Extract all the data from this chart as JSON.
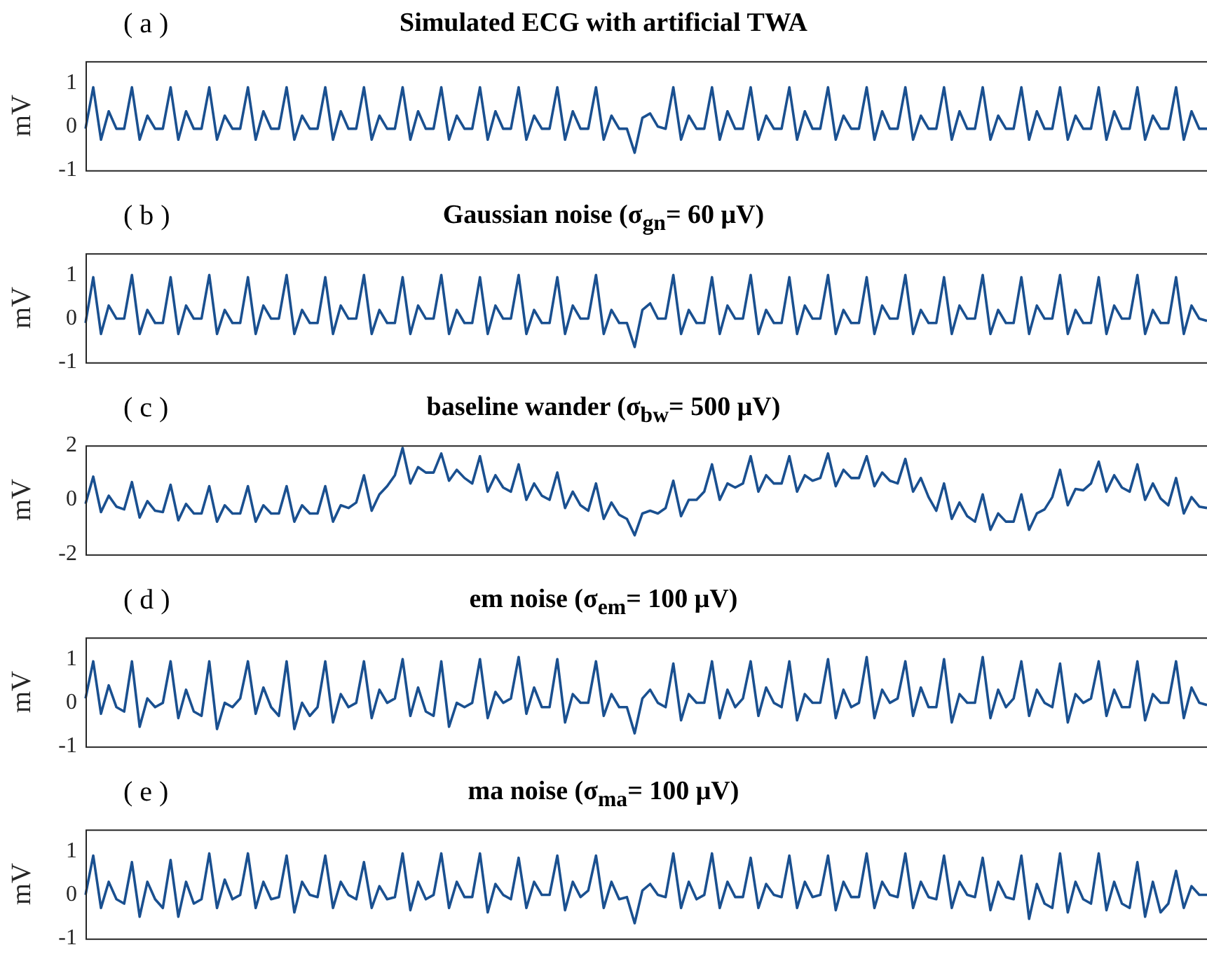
{
  "chart_data": [
    {
      "type": "line",
      "title": "Simulated ECG with artificial TWA",
      "annotations": [
        "( a )"
      ],
      "ylabel": "mV",
      "color": "#1a5090",
      "ylim": [
        -1,
        1.5
      ],
      "yticks": [
        -1,
        0,
        1
      ],
      "categories": [
        null,
        null,
        null,
        null,
        null,
        null,
        null,
        null,
        null,
        null,
        null,
        null,
        null,
        null,
        null,
        null,
        null,
        null,
        null,
        null,
        null,
        null,
        null,
        null,
        null,
        null,
        null,
        null,
        null,
        null,
        null,
        null,
        null,
        null,
        null,
        null,
        null,
        null,
        null,
        null,
        null,
        null,
        null,
        null,
        null,
        null,
        null,
        null,
        null,
        null,
        null,
        null,
        null,
        null,
        null,
        null,
        null,
        null,
        null,
        null,
        null,
        null,
        null,
        null,
        null,
        null,
        null,
        null,
        null,
        null,
        null,
        null,
        null,
        null,
        null,
        null,
        null,
        null,
        null,
        null,
        null,
        null,
        null,
        null,
        null,
        null,
        null,
        null,
        null,
        null,
        null,
        null,
        null,
        null,
        null,
        null,
        null,
        null,
        null,
        null,
        null,
        null,
        null,
        null,
        null,
        null,
        null,
        null,
        null,
        null,
        null,
        null,
        null,
        null,
        null,
        null,
        null,
        null,
        null,
        null,
        null,
        null,
        null,
        null,
        null,
        null,
        null,
        null,
        null,
        null,
        null,
        null,
        null,
        null,
        null,
        null,
        null,
        null,
        null,
        null,
        null,
        null,
        null,
        null,
        null,
        null
      ],
      "values": [
        -0.05,
        0.9,
        -0.3,
        0.35,
        -0.05,
        -0.05,
        0.9,
        -0.3,
        0.25,
        -0.05,
        -0.05,
        0.9,
        -0.3,
        0.35,
        -0.05,
        -0.05,
        0.9,
        -0.3,
        0.25,
        -0.05,
        -0.05,
        0.9,
        -0.3,
        0.35,
        -0.05,
        -0.05,
        0.9,
        -0.3,
        0.25,
        -0.05,
        -0.05,
        0.9,
        -0.3,
        0.35,
        -0.05,
        -0.05,
        0.9,
        -0.3,
        0.25,
        -0.05,
        -0.05,
        0.9,
        -0.3,
        0.35,
        -0.05,
        -0.05,
        0.9,
        -0.3,
        0.25,
        -0.05,
        -0.05,
        0.9,
        -0.3,
        0.35,
        -0.05,
        -0.05,
        0.9,
        -0.3,
        0.25,
        -0.05,
        -0.05,
        0.9,
        -0.3,
        0.35,
        -0.05,
        -0.05,
        0.9,
        -0.3,
        0.25,
        -0.05,
        -0.05,
        -0.6,
        0.2,
        0.3,
        0.0,
        -0.05,
        0.9,
        -0.3,
        0.25,
        -0.05,
        -0.05,
        0.9,
        -0.3,
        0.35,
        -0.05,
        -0.05,
        0.9,
        -0.3,
        0.25,
        -0.05,
        -0.05,
        0.9,
        -0.3,
        0.35,
        -0.05,
        -0.05,
        0.9,
        -0.3,
        0.25,
        -0.05,
        -0.05,
        0.9,
        -0.3,
        0.35,
        -0.05,
        -0.05,
        0.9,
        -0.3,
        0.25,
        -0.05,
        -0.05,
        0.9,
        -0.3,
        0.35,
        -0.05,
        -0.05,
        0.9,
        -0.3,
        0.25,
        -0.05,
        -0.05,
        0.9,
        -0.3,
        0.35,
        -0.05,
        -0.05,
        0.9,
        -0.3,
        0.25,
        -0.05,
        -0.05,
        0.9,
        -0.3,
        0.35,
        -0.05,
        -0.05,
        0.9,
        -0.3,
        0.25,
        -0.05,
        -0.05,
        0.9,
        -0.3,
        0.35,
        -0.05,
        -0.05
      ]
    },
    {
      "type": "line",
      "title": "Gaussian noise (σ$_{gn}$= 60 μV)",
      "annotations": [
        "( b )"
      ],
      "ylabel": "mV",
      "color": "#1a5090",
      "ylim": [
        -1,
        1.5
      ],
      "yticks": [
        -1,
        0,
        1
      ],
      "categories": [
        null,
        null,
        null,
        null,
        null,
        null,
        null,
        null,
        null,
        null,
        null,
        null,
        null,
        null,
        null,
        null,
        null,
        null,
        null,
        null,
        null,
        null,
        null,
        null,
        null,
        null,
        null,
        null,
        null,
        null,
        null,
        null,
        null,
        null,
        null,
        null,
        null,
        null,
        null,
        null,
        null,
        null,
        null,
        null,
        null,
        null,
        null,
        null,
        null,
        null,
        null,
        null,
        null,
        null,
        null,
        null,
        null,
        null,
        null,
        null,
        null,
        null,
        null,
        null,
        null,
        null,
        null,
        null,
        null,
        null,
        null,
        null,
        null,
        null,
        null,
        null,
        null,
        null,
        null,
        null,
        null,
        null,
        null,
        null,
        null,
        null,
        null,
        null,
        null,
        null,
        null,
        null,
        null,
        null,
        null,
        null,
        null,
        null,
        null,
        null,
        null,
        null,
        null,
        null,
        null,
        null,
        null,
        null,
        null,
        null,
        null,
        null,
        null,
        null,
        null,
        null,
        null,
        null,
        null,
        null,
        null,
        null,
        null,
        null,
        null,
        null,
        null,
        null,
        null,
        null,
        null,
        null,
        null,
        null,
        null,
        null,
        null,
        null,
        null,
        null,
        null,
        null,
        null,
        null,
        null,
        null
      ],
      "values": [
        -0.1,
        0.95,
        -0.35,
        0.3,
        0.0,
        0.0,
        1.0,
        -0.35,
        0.2,
        -0.1,
        -0.1,
        0.95,
        -0.35,
        0.3,
        0.0,
        0.0,
        1.0,
        -0.35,
        0.2,
        -0.1,
        -0.1,
        0.95,
        -0.35,
        0.3,
        0.0,
        0.0,
        1.0,
        -0.35,
        0.2,
        -0.1,
        -0.1,
        0.95,
        -0.35,
        0.3,
        0.0,
        0.0,
        1.0,
        -0.35,
        0.2,
        -0.1,
        -0.1,
        0.95,
        -0.35,
        0.3,
        0.0,
        0.0,
        1.0,
        -0.35,
        0.2,
        -0.1,
        -0.1,
        0.95,
        -0.35,
        0.3,
        0.0,
        0.0,
        1.0,
        -0.35,
        0.2,
        -0.1,
        -0.1,
        0.95,
        -0.35,
        0.3,
        0.0,
        0.0,
        1.0,
        -0.35,
        0.2,
        -0.1,
        -0.1,
        -0.65,
        0.2,
        0.35,
        0.0,
        0.0,
        1.0,
        -0.35,
        0.2,
        -0.1,
        -0.1,
        0.95,
        -0.35,
        0.3,
        0.0,
        0.0,
        1.0,
        -0.35,
        0.2,
        -0.1,
        -0.1,
        0.95,
        -0.35,
        0.3,
        0.0,
        0.0,
        1.0,
        -0.35,
        0.2,
        -0.1,
        -0.1,
        0.95,
        -0.35,
        0.3,
        0.0,
        0.0,
        1.0,
        -0.35,
        0.2,
        -0.1,
        -0.1,
        0.95,
        -0.35,
        0.3,
        0.0,
        0.0,
        1.0,
        -0.35,
        0.2,
        -0.1,
        -0.1,
        0.95,
        -0.35,
        0.3,
        0.0,
        0.0,
        1.0,
        -0.35,
        0.2,
        -0.1,
        -0.1,
        0.95,
        -0.35,
        0.3,
        0.0,
        0.0,
        1.0,
        -0.35,
        0.2,
        -0.1,
        -0.1,
        0.95,
        -0.35,
        0.3,
        0.0,
        -0.05
      ]
    },
    {
      "type": "line",
      "title": "baseline wander (σ$_{bw}$= 500 μV)",
      "annotations": [
        "( c )"
      ],
      "ylabel": "mV",
      "color": "#1a5090",
      "ylim": [
        -2,
        2
      ],
      "yticks": [
        -2,
        0,
        2
      ],
      "categories": [
        null,
        null,
        null,
        null,
        null,
        null,
        null,
        null,
        null,
        null,
        null,
        null,
        null,
        null,
        null,
        null,
        null,
        null,
        null,
        null,
        null,
        null,
        null,
        null,
        null,
        null,
        null,
        null,
        null,
        null,
        null,
        null,
        null,
        null,
        null,
        null,
        null,
        null,
        null,
        null,
        null,
        null,
        null,
        null,
        null,
        null,
        null,
        null,
        null,
        null,
        null,
        null,
        null,
        null,
        null,
        null,
        null,
        null,
        null,
        null,
        null,
        null,
        null,
        null,
        null,
        null,
        null,
        null,
        null,
        null,
        null,
        null,
        null,
        null,
        null,
        null,
        null,
        null,
        null,
        null,
        null,
        null,
        null,
        null,
        null,
        null,
        null,
        null,
        null,
        null,
        null,
        null,
        null,
        null,
        null,
        null,
        null,
        null,
        null,
        null,
        null,
        null,
        null,
        null,
        null,
        null,
        null,
        null,
        null,
        null,
        null,
        null,
        null,
        null,
        null,
        null,
        null,
        null,
        null,
        null,
        null,
        null,
        null,
        null,
        null,
        null,
        null,
        null,
        null,
        null,
        null,
        null,
        null,
        null,
        null,
        null,
        null,
        null,
        null,
        null,
        null,
        null,
        null,
        null,
        null,
        null
      ],
      "values": [
        -0.15,
        0.85,
        -0.45,
        0.15,
        -0.25,
        -0.35,
        0.65,
        -0.65,
        -0.05,
        -0.4,
        -0.45,
        0.55,
        -0.75,
        -0.15,
        -0.5,
        -0.5,
        0.5,
        -0.8,
        -0.2,
        -0.5,
        -0.5,
        0.5,
        -0.8,
        -0.2,
        -0.5,
        -0.5,
        0.5,
        -0.8,
        -0.2,
        -0.5,
        -0.5,
        0.5,
        -0.8,
        -0.2,
        -0.3,
        -0.1,
        0.9,
        -0.4,
        0.2,
        0.5,
        0.9,
        1.9,
        0.6,
        1.2,
        1.0,
        1.0,
        1.7,
        0.7,
        1.1,
        0.8,
        0.6,
        1.6,
        0.3,
        0.9,
        0.45,
        0.3,
        1.3,
        0.0,
        0.6,
        0.15,
        0.0,
        1.0,
        -0.3,
        0.3,
        -0.2,
        -0.4,
        0.6,
        -0.7,
        -0.1,
        -0.55,
        -0.7,
        -1.3,
        -0.5,
        -0.4,
        -0.5,
        -0.3,
        0.7,
        -0.6,
        0.0,
        0.0,
        0.3,
        1.3,
        0.0,
        0.6,
        0.45,
        0.6,
        1.6,
        0.3,
        0.9,
        0.6,
        0.6,
        1.6,
        0.3,
        0.9,
        0.7,
        0.8,
        1.7,
        0.5,
        1.1,
        0.8,
        0.8,
        1.6,
        0.5,
        1.0,
        0.7,
        0.6,
        1.5,
        0.3,
        0.8,
        0.1,
        -0.4,
        0.6,
        -0.7,
        -0.1,
        -0.6,
        -0.8,
        0.2,
        -1.1,
        -0.5,
        -0.8,
        -0.8,
        0.2,
        -1.1,
        -0.5,
        -0.35,
        0.1,
        1.1,
        -0.2,
        0.4,
        0.35,
        0.6,
        1.4,
        0.3,
        0.9,
        0.45,
        0.3,
        1.3,
        0.0,
        0.6,
        0.05,
        -0.2,
        0.8,
        -0.5,
        0.1,
        -0.25,
        -0.3
      ]
    },
    {
      "type": "line",
      "title": "em noise (σ$_{em}$= 100 μV)",
      "annotations": [
        "( d )"
      ],
      "ylabel": "mV",
      "color": "#1a5090",
      "ylim": [
        -1,
        1.5
      ],
      "yticks": [
        -1,
        0,
        1
      ],
      "categories": [
        null,
        null,
        null,
        null,
        null,
        null,
        null,
        null,
        null,
        null,
        null,
        null,
        null,
        null,
        null,
        null,
        null,
        null,
        null,
        null,
        null,
        null,
        null,
        null,
        null,
        null,
        null,
        null,
        null,
        null,
        null,
        null,
        null,
        null,
        null,
        null,
        null,
        null,
        null,
        null,
        null,
        null,
        null,
        null,
        null,
        null,
        null,
        null,
        null,
        null,
        null,
        null,
        null,
        null,
        null,
        null,
        null,
        null,
        null,
        null,
        null,
        null,
        null,
        null,
        null,
        null,
        null,
        null,
        null,
        null,
        null,
        null,
        null,
        null,
        null,
        null,
        null,
        null,
        null,
        null,
        null,
        null,
        null,
        null,
        null,
        null,
        null,
        null,
        null,
        null,
        null,
        null,
        null,
        null,
        null,
        null,
        null,
        null,
        null,
        null,
        null,
        null,
        null,
        null,
        null,
        null,
        null,
        null,
        null,
        null,
        null,
        null,
        null,
        null,
        null,
        null,
        null,
        null,
        null,
        null,
        null,
        null,
        null,
        null,
        null,
        null,
        null,
        null,
        null,
        null,
        null,
        null,
        null,
        null,
        null,
        null,
        null,
        null,
        null,
        null,
        null,
        null,
        null,
        null,
        null,
        null
      ],
      "values": [
        0.1,
        0.95,
        -0.25,
        0.4,
        -0.1,
        -0.2,
        0.95,
        -0.55,
        0.1,
        -0.1,
        0.0,
        0.95,
        -0.35,
        0.3,
        -0.2,
        -0.3,
        0.95,
        -0.6,
        0.0,
        -0.1,
        0.1,
        0.95,
        -0.25,
        0.35,
        -0.1,
        -0.3,
        0.95,
        -0.6,
        0.0,
        -0.3,
        -0.1,
        0.95,
        -0.45,
        0.2,
        -0.1,
        0.0,
        0.95,
        -0.35,
        0.3,
        0.0,
        0.1,
        1.0,
        -0.3,
        0.35,
        -0.2,
        -0.3,
        0.95,
        -0.55,
        0.0,
        -0.1,
        0.0,
        1.0,
        -0.35,
        0.25,
        0.0,
        0.1,
        1.05,
        -0.25,
        0.35,
        -0.1,
        -0.1,
        1.0,
        -0.45,
        0.2,
        0.0,
        0.0,
        0.95,
        -0.3,
        0.2,
        -0.1,
        -0.1,
        -0.7,
        0.1,
        0.3,
        0.0,
        -0.1,
        0.9,
        -0.4,
        0.2,
        0.0,
        0.0,
        0.95,
        -0.35,
        0.3,
        -0.1,
        0.1,
        0.95,
        -0.3,
        0.35,
        0.0,
        -0.1,
        0.95,
        -0.4,
        0.2,
        0.0,
        0.0,
        1.0,
        -0.35,
        0.3,
        -0.1,
        0.0,
        1.05,
        -0.35,
        0.3,
        0.0,
        0.1,
        0.95,
        -0.3,
        0.35,
        -0.1,
        -0.1,
        1.0,
        -0.45,
        0.2,
        0.0,
        0.0,
        1.05,
        -0.35,
        0.3,
        -0.1,
        0.1,
        0.95,
        -0.3,
        0.3,
        0.0,
        -0.1,
        0.9,
        -0.45,
        0.2,
        0.0,
        0.1,
        0.95,
        -0.3,
        0.3,
        -0.1,
        -0.1,
        0.95,
        -0.4,
        0.2,
        0.0,
        0.0,
        0.95,
        -0.35,
        0.35,
        0.0,
        -0.05
      ]
    },
    {
      "type": "line",
      "title": "ma noise (σ$_{ma}$= 100 μV)",
      "annotations": [
        "( e )"
      ],
      "ylabel": "mV",
      "color": "#1a5090",
      "ylim": [
        -1,
        1.5
      ],
      "yticks": [
        -1,
        0,
        1
      ],
      "categories": [
        null,
        null,
        null,
        null,
        null,
        null,
        null,
        null,
        null,
        null,
        null,
        null,
        null,
        null,
        null,
        null,
        null,
        null,
        null,
        null,
        null,
        null,
        null,
        null,
        null,
        null,
        null,
        null,
        null,
        null,
        null,
        null,
        null,
        null,
        null,
        null,
        null,
        null,
        null,
        null,
        null,
        null,
        null,
        null,
        null,
        null,
        null,
        null,
        null,
        null,
        null,
        null,
        null,
        null,
        null,
        null,
        null,
        null,
        null,
        null,
        null,
        null,
        null,
        null,
        null,
        null,
        null,
        null,
        null,
        null,
        null,
        null,
        null,
        null,
        null,
        null,
        null,
        null,
        null,
        null,
        null,
        null,
        null,
        null,
        null,
        null,
        null,
        null,
        null,
        null,
        null,
        null,
        null,
        null,
        null,
        null,
        null,
        null,
        null,
        null,
        null,
        null,
        null,
        null,
        null,
        null,
        null,
        null,
        null,
        null,
        null,
        null,
        null,
        null,
        null,
        null,
        null,
        null,
        null,
        null,
        null,
        null,
        null,
        null,
        null,
        null,
        null,
        null,
        null,
        null,
        null,
        null,
        null,
        null,
        null,
        null,
        null,
        null,
        null,
        null,
        null,
        null,
        null,
        null,
        null,
        null
      ],
      "values": [
        0.0,
        0.9,
        -0.3,
        0.3,
        -0.1,
        -0.2,
        0.75,
        -0.5,
        0.3,
        -0.1,
        -0.3,
        0.8,
        -0.5,
        0.3,
        -0.2,
        -0.1,
        0.95,
        -0.3,
        0.35,
        -0.1,
        0.0,
        0.95,
        -0.3,
        0.3,
        -0.1,
        -0.05,
        0.9,
        -0.4,
        0.3,
        0.0,
        -0.05,
        0.9,
        -0.3,
        0.3,
        0.0,
        -0.1,
        0.75,
        -0.3,
        0.2,
        -0.1,
        -0.05,
        0.95,
        -0.35,
        0.3,
        -0.1,
        0.0,
        0.95,
        -0.3,
        0.3,
        -0.05,
        -0.05,
        0.95,
        -0.4,
        0.25,
        0.0,
        -0.1,
        0.85,
        -0.3,
        0.3,
        0.0,
        0.0,
        0.9,
        -0.35,
        0.3,
        -0.05,
        0.1,
        0.9,
        -0.3,
        0.3,
        -0.1,
        -0.05,
        -0.65,
        0.1,
        0.25,
        0.0,
        -0.05,
        0.95,
        -0.3,
        0.3,
        -0.1,
        0.0,
        0.95,
        -0.3,
        0.3,
        -0.05,
        -0.05,
        0.85,
        -0.3,
        0.25,
        0.0,
        -0.05,
        0.9,
        -0.3,
        0.3,
        -0.05,
        0.0,
        0.9,
        -0.35,
        0.3,
        -0.05,
        -0.05,
        0.95,
        -0.3,
        0.3,
        0.0,
        -0.05,
        0.95,
        -0.3,
        0.3,
        -0.05,
        -0.1,
        0.9,
        -0.3,
        0.3,
        0.0,
        -0.05,
        0.85,
        -0.35,
        0.3,
        -0.05,
        -0.1,
        0.9,
        -0.55,
        0.25,
        -0.2,
        -0.3,
        0.95,
        -0.4,
        0.3,
        -0.1,
        -0.2,
        0.95,
        -0.35,
        0.3,
        -0.2,
        -0.3,
        0.75,
        -0.5,
        0.3,
        -0.4,
        -0.2,
        0.55,
        -0.3,
        0.2,
        0.0,
        0.0
      ]
    }
  ]
}
